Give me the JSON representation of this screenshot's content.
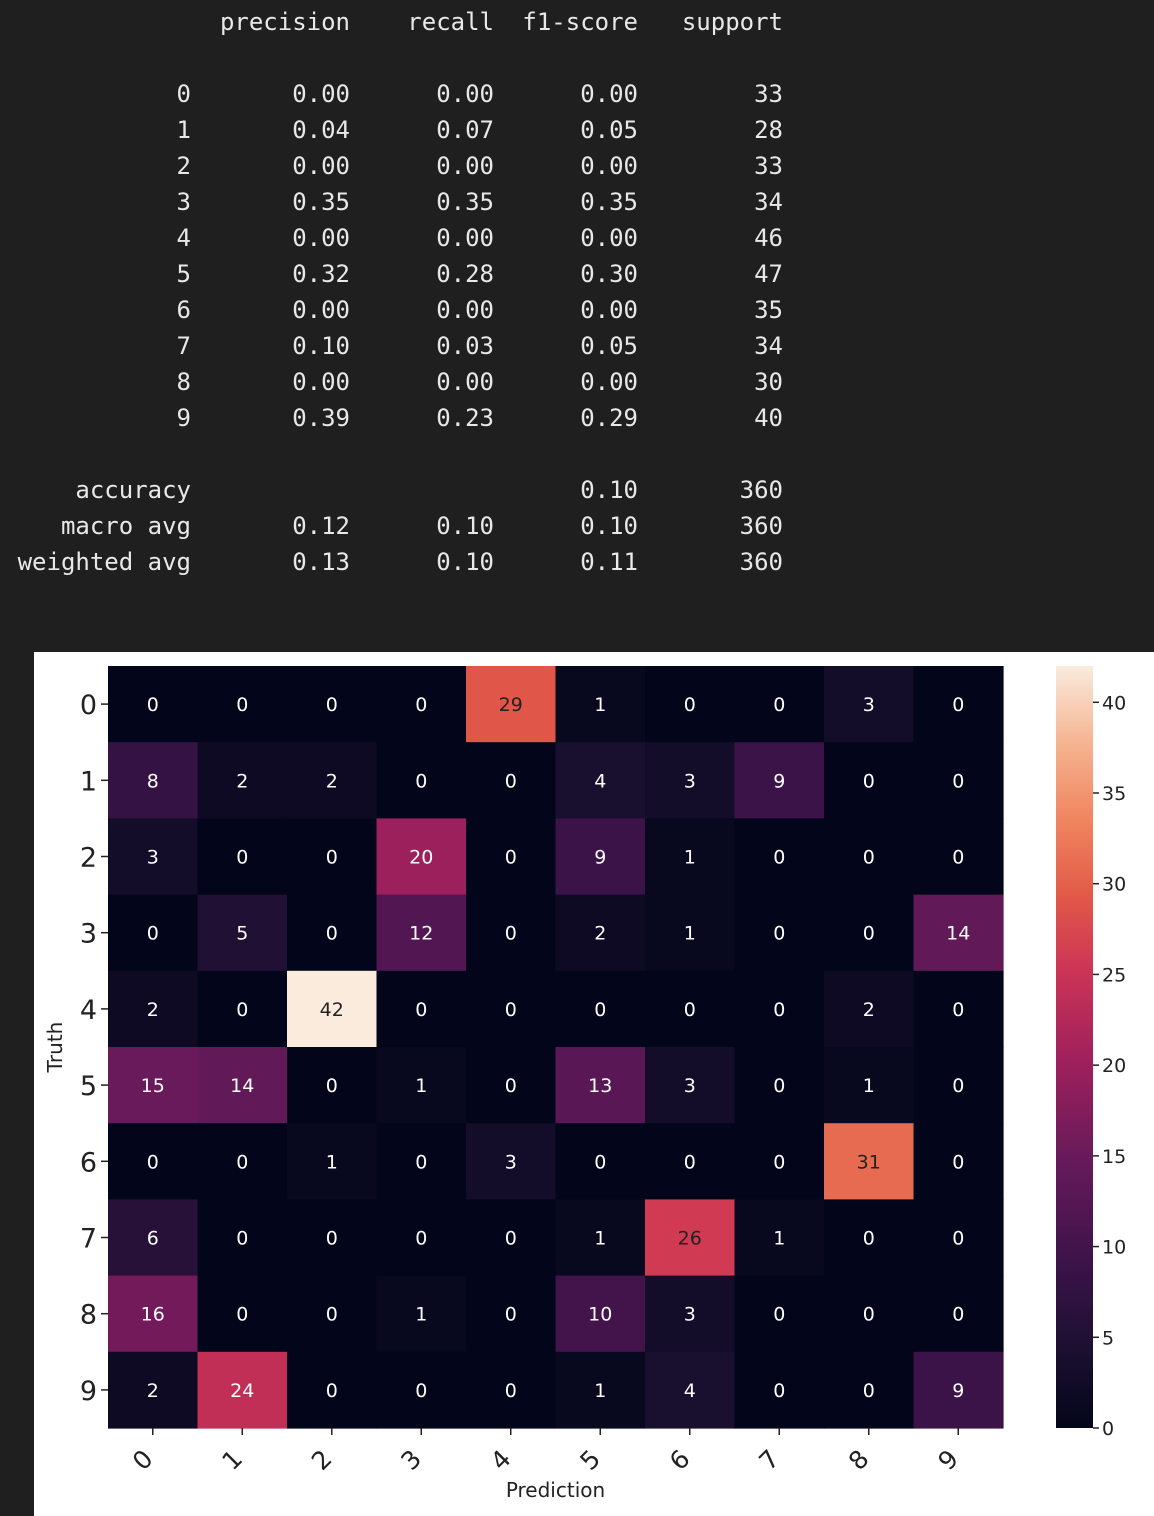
{
  "report": {
    "columns": [
      "precision",
      "recall",
      "f1-score",
      "support"
    ],
    "rows": [
      {
        "label": "0",
        "precision": "0.00",
        "recall": "0.00",
        "f1": "0.00",
        "support": "33"
      },
      {
        "label": "1",
        "precision": "0.04",
        "recall": "0.07",
        "f1": "0.05",
        "support": "28"
      },
      {
        "label": "2",
        "precision": "0.00",
        "recall": "0.00",
        "f1": "0.00",
        "support": "33"
      },
      {
        "label": "3",
        "precision": "0.35",
        "recall": "0.35",
        "f1": "0.35",
        "support": "34"
      },
      {
        "label": "4",
        "precision": "0.00",
        "recall": "0.00",
        "f1": "0.00",
        "support": "46"
      },
      {
        "label": "5",
        "precision": "0.32",
        "recall": "0.28",
        "f1": "0.30",
        "support": "47"
      },
      {
        "label": "6",
        "precision": "0.00",
        "recall": "0.00",
        "f1": "0.00",
        "support": "35"
      },
      {
        "label": "7",
        "precision": "0.10",
        "recall": "0.03",
        "f1": "0.05",
        "support": "34"
      },
      {
        "label": "8",
        "precision": "0.00",
        "recall": "0.00",
        "f1": "0.00",
        "support": "30"
      },
      {
        "label": "9",
        "precision": "0.39",
        "recall": "0.23",
        "f1": "0.29",
        "support": "40"
      }
    ],
    "summary": [
      {
        "label": "accuracy",
        "precision": "",
        "recall": "",
        "f1": "0.10",
        "support": "360"
      },
      {
        "label": "macro avg",
        "precision": "0.12",
        "recall": "0.10",
        "f1": "0.10",
        "support": "360"
      },
      {
        "label": "weighted avg",
        "precision": "0.13",
        "recall": "0.10",
        "f1": "0.11",
        "support": "360"
      }
    ]
  },
  "chart_data": {
    "type": "heatmap",
    "xlabel": "Prediction",
    "ylabel": "Truth",
    "x_ticks": [
      "0",
      "1",
      "2",
      "3",
      "4",
      "5",
      "6",
      "7",
      "8",
      "9"
    ],
    "y_ticks": [
      "0",
      "1",
      "2",
      "3",
      "4",
      "5",
      "6",
      "7",
      "8",
      "9"
    ],
    "matrix": [
      [
        0,
        0,
        0,
        0,
        29,
        1,
        0,
        0,
        3,
        0
      ],
      [
        8,
        2,
        2,
        0,
        0,
        4,
        3,
        9,
        0,
        0
      ],
      [
        3,
        0,
        0,
        20,
        0,
        9,
        1,
        0,
        0,
        0
      ],
      [
        0,
        5,
        0,
        12,
        0,
        2,
        1,
        0,
        0,
        14
      ],
      [
        2,
        0,
        42,
        0,
        0,
        0,
        0,
        0,
        2,
        0
      ],
      [
        15,
        14,
        0,
        1,
        0,
        13,
        3,
        0,
        1,
        0
      ],
      [
        0,
        0,
        1,
        0,
        3,
        0,
        0,
        0,
        31,
        0
      ],
      [
        6,
        0,
        0,
        0,
        0,
        1,
        26,
        1,
        0,
        0
      ],
      [
        16,
        0,
        0,
        1,
        0,
        10,
        3,
        0,
        0,
        0
      ],
      [
        2,
        24,
        0,
        0,
        0,
        1,
        4,
        0,
        0,
        9
      ]
    ],
    "value_range": [
      0,
      42
    ],
    "colorbar_ticks": [
      0,
      5,
      10,
      15,
      20,
      25,
      30,
      35,
      40
    ],
    "colormap": "rocket"
  }
}
